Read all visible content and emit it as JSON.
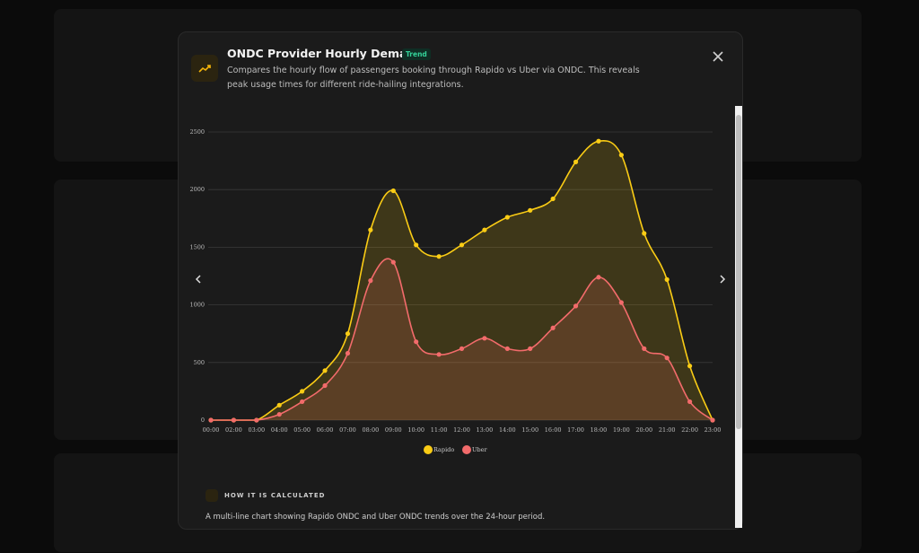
{
  "modal": {
    "title": "ONDC Provider Hourly Demand",
    "badge": "Trend",
    "description": "Compares the hourly flow of passengers booking through Rapido vs Uber via ONDC. This reveals peak usage times for different ride-hailing integrations.",
    "section_title": "HOW IT IS CALCULATED",
    "section_text": "A multi-line chart showing Rapido ONDC and Uber ONDC trends over the 24-hour period."
  },
  "chart_data": {
    "type": "line",
    "categories": [
      "00:00",
      "02:00",
      "03:00",
      "04:00",
      "05:00",
      "06:00",
      "07:00",
      "08:00",
      "09:00",
      "10:00",
      "11:00",
      "12:00",
      "13:00",
      "14:00",
      "15:00",
      "16:00",
      "17:00",
      "18:00",
      "19:00",
      "20:00",
      "21:00",
      "22:00",
      "23:00"
    ],
    "series": [
      {
        "name": "Rapido",
        "color": "#facc15",
        "values": [
          0,
          0,
          0,
          130,
          250,
          430,
          750,
          1650,
          1990,
          1520,
          1420,
          1520,
          1650,
          1760,
          1820,
          1920,
          2240,
          2420,
          2300,
          1620,
          1220,
          470,
          0
        ]
      },
      {
        "name": "Uber",
        "color": "#f26b6b",
        "values": [
          0,
          0,
          0,
          50,
          160,
          300,
          580,
          1210,
          1370,
          680,
          570,
          620,
          710,
          620,
          620,
          800,
          990,
          1240,
          1020,
          620,
          540,
          160,
          0
        ]
      }
    ],
    "ylim": [
      0,
      2500
    ],
    "yticks": [
      0,
      500,
      1000,
      1500,
      2000,
      2500
    ],
    "grid": true,
    "legend": "bottom"
  }
}
